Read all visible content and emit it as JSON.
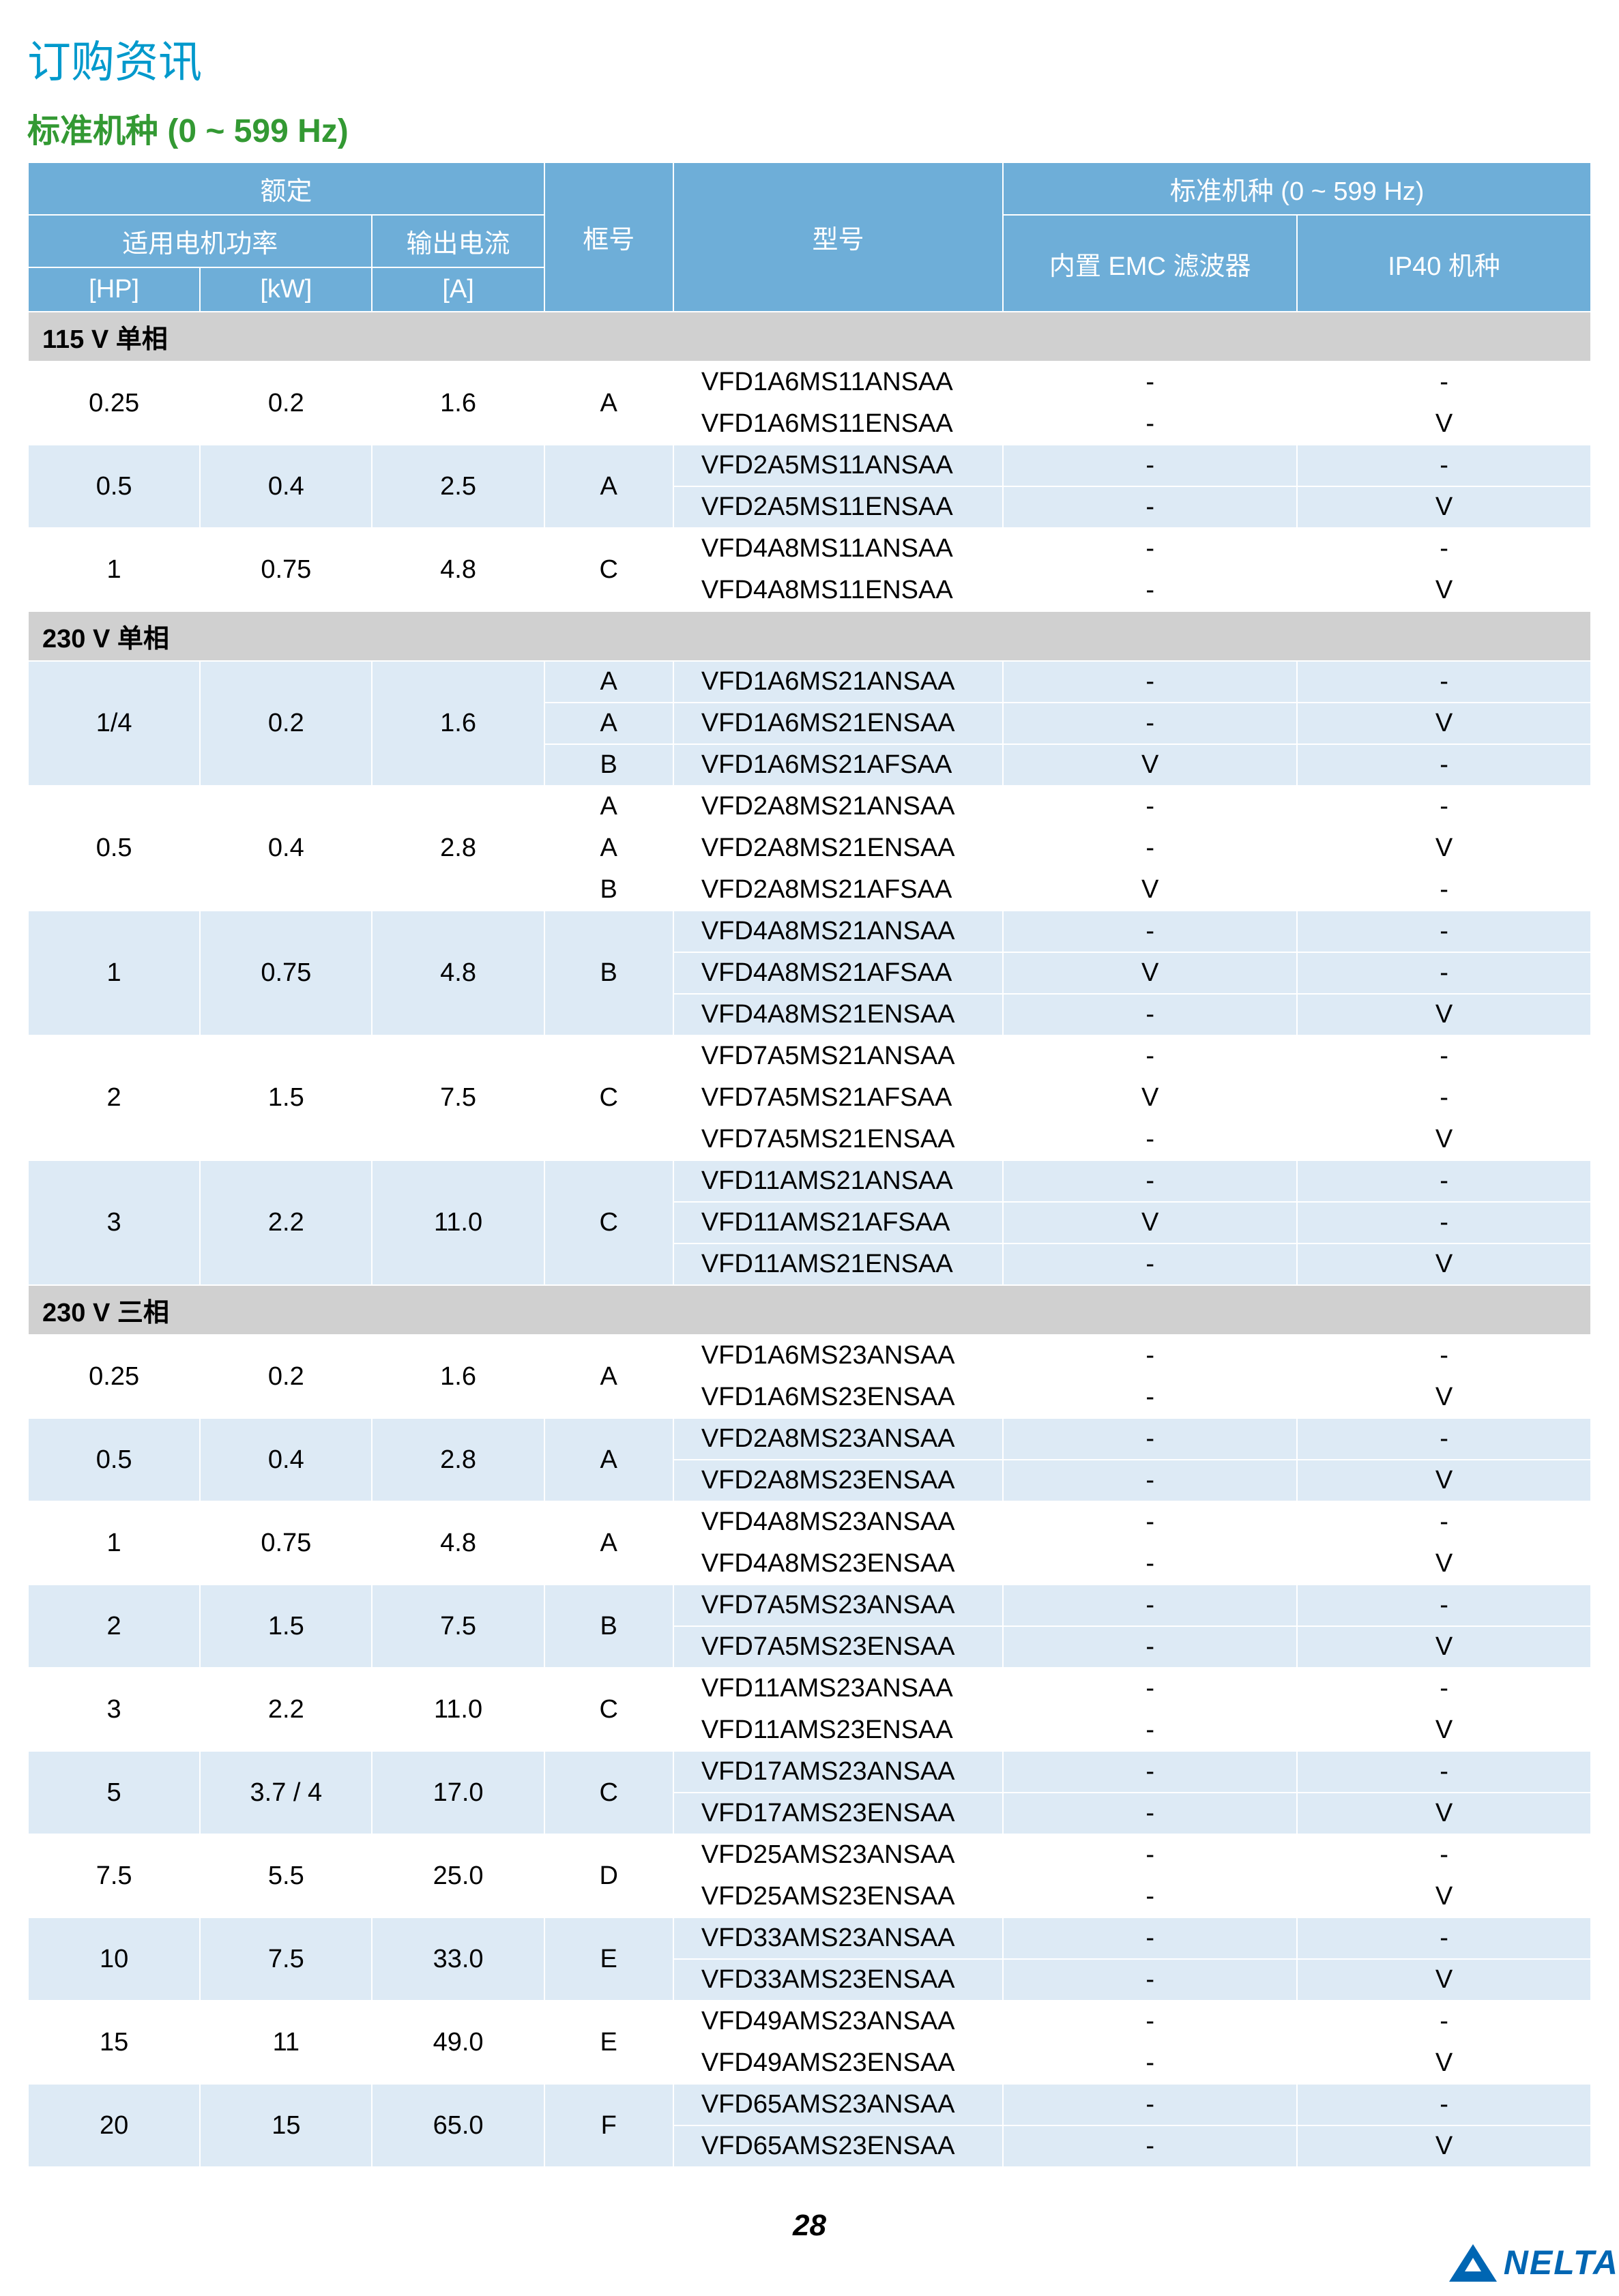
{
  "page_title": "订购资讯",
  "subtitle": "标准机种 (0 ~ 599 Hz)",
  "page_number": "28",
  "logo_text": "NELTA",
  "colors": {
    "title": "#0099cc",
    "subtitle": "#339933",
    "header_bg": "#6eaed8",
    "header_text": "#ffffff",
    "row_light": "#ffffff",
    "row_blue": "#ddeaf5",
    "section_bg": "#d0d0d0",
    "logo": "#0066b3"
  },
  "headers": {
    "rating": "额定",
    "motor_power": "适用电机功率",
    "hp": "[HP]",
    "kw": "[kW]",
    "output_current": "输出电流",
    "amps": "[A]",
    "frame": "框号",
    "model": "型号",
    "standard": "标准机种 (0 ~ 599 Hz)",
    "emc": "内置 EMC 滤波器",
    "ip40": "IP40 机种"
  },
  "sections": [
    {
      "title": "115 V 单相",
      "groups": [
        {
          "hp": "0.25",
          "kw": "0.2",
          "amps": "1.6",
          "frame": "A",
          "rows": [
            {
              "model": "VFD1A6MS11ANSAA",
              "emc": "-",
              "ip40": "-",
              "shade": "light"
            },
            {
              "model": "VFD1A6MS11ENSAA",
              "emc": "-",
              "ip40": "V",
              "shade": "light"
            }
          ]
        },
        {
          "hp": "0.5",
          "kw": "0.4",
          "amps": "2.5",
          "frame": "A",
          "rows": [
            {
              "model": "VFD2A5MS11ANSAA",
              "emc": "-",
              "ip40": "-",
              "shade": "blue"
            },
            {
              "model": "VFD2A5MS11ENSAA",
              "emc": "-",
              "ip40": "V",
              "shade": "blue"
            }
          ]
        },
        {
          "hp": "1",
          "kw": "0.75",
          "amps": "4.8",
          "frame": "C",
          "rows": [
            {
              "model": "VFD4A8MS11ANSAA",
              "emc": "-",
              "ip40": "-",
              "shade": "light"
            },
            {
              "model": "VFD4A8MS11ENSAA",
              "emc": "-",
              "ip40": "V",
              "shade": "light"
            }
          ]
        }
      ]
    },
    {
      "title": "230 V 单相",
      "groups": [
        {
          "hp": "1/4",
          "kw": "0.2",
          "amps": "1.6",
          "frames": [
            "A",
            "A",
            "B"
          ],
          "rows": [
            {
              "model": "VFD1A6MS21ANSAA",
              "emc": "-",
              "ip40": "-",
              "shade": "blue"
            },
            {
              "model": "VFD1A6MS21ENSAA",
              "emc": "-",
              "ip40": "V",
              "shade": "blue"
            },
            {
              "model": "VFD1A6MS21AFSAA",
              "emc": "V",
              "ip40": "-",
              "shade": "blue"
            }
          ]
        },
        {
          "hp": "0.5",
          "kw": "0.4",
          "amps": "2.8",
          "frames": [
            "A",
            "A",
            "B"
          ],
          "rows": [
            {
              "model": "VFD2A8MS21ANSAA",
              "emc": "-",
              "ip40": "-",
              "shade": "light"
            },
            {
              "model": "VFD2A8MS21ENSAA",
              "emc": "-",
              "ip40": "V",
              "shade": "light"
            },
            {
              "model": "VFD2A8MS21AFSAA",
              "emc": "V",
              "ip40": "-",
              "shade": "light"
            }
          ]
        },
        {
          "hp": "1",
          "kw": "0.75",
          "amps": "4.8",
          "frame": "B",
          "rows": [
            {
              "model": "VFD4A8MS21ANSAA",
              "emc": "-",
              "ip40": "-",
              "shade": "blue"
            },
            {
              "model": "VFD4A8MS21AFSAA",
              "emc": "V",
              "ip40": "-",
              "shade": "blue"
            },
            {
              "model": "VFD4A8MS21ENSAA",
              "emc": "-",
              "ip40": "V",
              "shade": "blue"
            }
          ]
        },
        {
          "hp": "2",
          "kw": "1.5",
          "amps": "7.5",
          "frame": "C",
          "rows": [
            {
              "model": "VFD7A5MS21ANSAA",
              "emc": "-",
              "ip40": "-",
              "shade": "light"
            },
            {
              "model": "VFD7A5MS21AFSAA",
              "emc": "V",
              "ip40": "-",
              "shade": "light"
            },
            {
              "model": "VFD7A5MS21ENSAA",
              "emc": "-",
              "ip40": "V",
              "shade": "light"
            }
          ]
        },
        {
          "hp": "3",
          "kw": "2.2",
          "amps": "11.0",
          "frame": "C",
          "rows": [
            {
              "model": "VFD11AMS21ANSAA",
              "emc": "-",
              "ip40": "-",
              "shade": "blue"
            },
            {
              "model": "VFD11AMS21AFSAA",
              "emc": "V",
              "ip40": "-",
              "shade": "blue"
            },
            {
              "model": "VFD11AMS21ENSAA",
              "emc": "-",
              "ip40": "V",
              "shade": "blue"
            }
          ]
        }
      ]
    },
    {
      "title": "230 V 三相",
      "groups": [
        {
          "hp": "0.25",
          "kw": "0.2",
          "amps": "1.6",
          "frame": "A",
          "rows": [
            {
              "model": "VFD1A6MS23ANSAA",
              "emc": "-",
              "ip40": "-",
              "shade": "light"
            },
            {
              "model": "VFD1A6MS23ENSAA",
              "emc": "-",
              "ip40": "V",
              "shade": "light"
            }
          ]
        },
        {
          "hp": "0.5",
          "kw": "0.4",
          "amps": "2.8",
          "frame": "A",
          "rows": [
            {
              "model": "VFD2A8MS23ANSAA",
              "emc": "-",
              "ip40": "-",
              "shade": "blue"
            },
            {
              "model": "VFD2A8MS23ENSAA",
              "emc": "-",
              "ip40": "V",
              "shade": "blue"
            }
          ]
        },
        {
          "hp": "1",
          "kw": "0.75",
          "amps": "4.8",
          "frame": "A",
          "rows": [
            {
              "model": "VFD4A8MS23ANSAA",
              "emc": "-",
              "ip40": "-",
              "shade": "light"
            },
            {
              "model": "VFD4A8MS23ENSAA",
              "emc": "-",
              "ip40": "V",
              "shade": "light"
            }
          ]
        },
        {
          "hp": "2",
          "kw": "1.5",
          "amps": "7.5",
          "frame": "B",
          "rows": [
            {
              "model": "VFD7A5MS23ANSAA",
              "emc": "-",
              "ip40": "-",
              "shade": "blue"
            },
            {
              "model": "VFD7A5MS23ENSAA",
              "emc": "-",
              "ip40": "V",
              "shade": "blue"
            }
          ]
        },
        {
          "hp": "3",
          "kw": "2.2",
          "amps": "11.0",
          "frame": "C",
          "rows": [
            {
              "model": "VFD11AMS23ANSAA",
              "emc": "-",
              "ip40": "-",
              "shade": "light"
            },
            {
              "model": "VFD11AMS23ENSAA",
              "emc": "-",
              "ip40": "V",
              "shade": "light"
            }
          ]
        },
        {
          "hp": "5",
          "kw": "3.7 / 4",
          "amps": "17.0",
          "frame": "C",
          "rows": [
            {
              "model": "VFD17AMS23ANSAA",
              "emc": "-",
              "ip40": "-",
              "shade": "blue"
            },
            {
              "model": "VFD17AMS23ENSAA",
              "emc": "-",
              "ip40": "V",
              "shade": "blue"
            }
          ]
        },
        {
          "hp": "7.5",
          "kw": "5.5",
          "amps": "25.0",
          "frame": "D",
          "rows": [
            {
              "model": "VFD25AMS23ANSAA",
              "emc": "-",
              "ip40": "-",
              "shade": "light"
            },
            {
              "model": "VFD25AMS23ENSAA",
              "emc": "-",
              "ip40": "V",
              "shade": "light"
            }
          ]
        },
        {
          "hp": "10",
          "kw": "7.5",
          "amps": "33.0",
          "frame": "E",
          "rows": [
            {
              "model": "VFD33AMS23ANSAA",
              "emc": "-",
              "ip40": "-",
              "shade": "blue"
            },
            {
              "model": "VFD33AMS23ENSAA",
              "emc": "-",
              "ip40": "V",
              "shade": "blue"
            }
          ]
        },
        {
          "hp": "15",
          "kw": "11",
          "amps": "49.0",
          "frame": "E",
          "rows": [
            {
              "model": "VFD49AMS23ANSAA",
              "emc": "-",
              "ip40": "-",
              "shade": "light"
            },
            {
              "model": "VFD49AMS23ENSAA",
              "emc": "-",
              "ip40": "V",
              "shade": "light"
            }
          ]
        },
        {
          "hp": "20",
          "kw": "15",
          "amps": "65.0",
          "frame": "F",
          "rows": [
            {
              "model": "VFD65AMS23ANSAA",
              "emc": "-",
              "ip40": "-",
              "shade": "blue"
            },
            {
              "model": "VFD65AMS23ENSAA",
              "emc": "-",
              "ip40": "V",
              "shade": "blue"
            }
          ]
        }
      ]
    }
  ]
}
